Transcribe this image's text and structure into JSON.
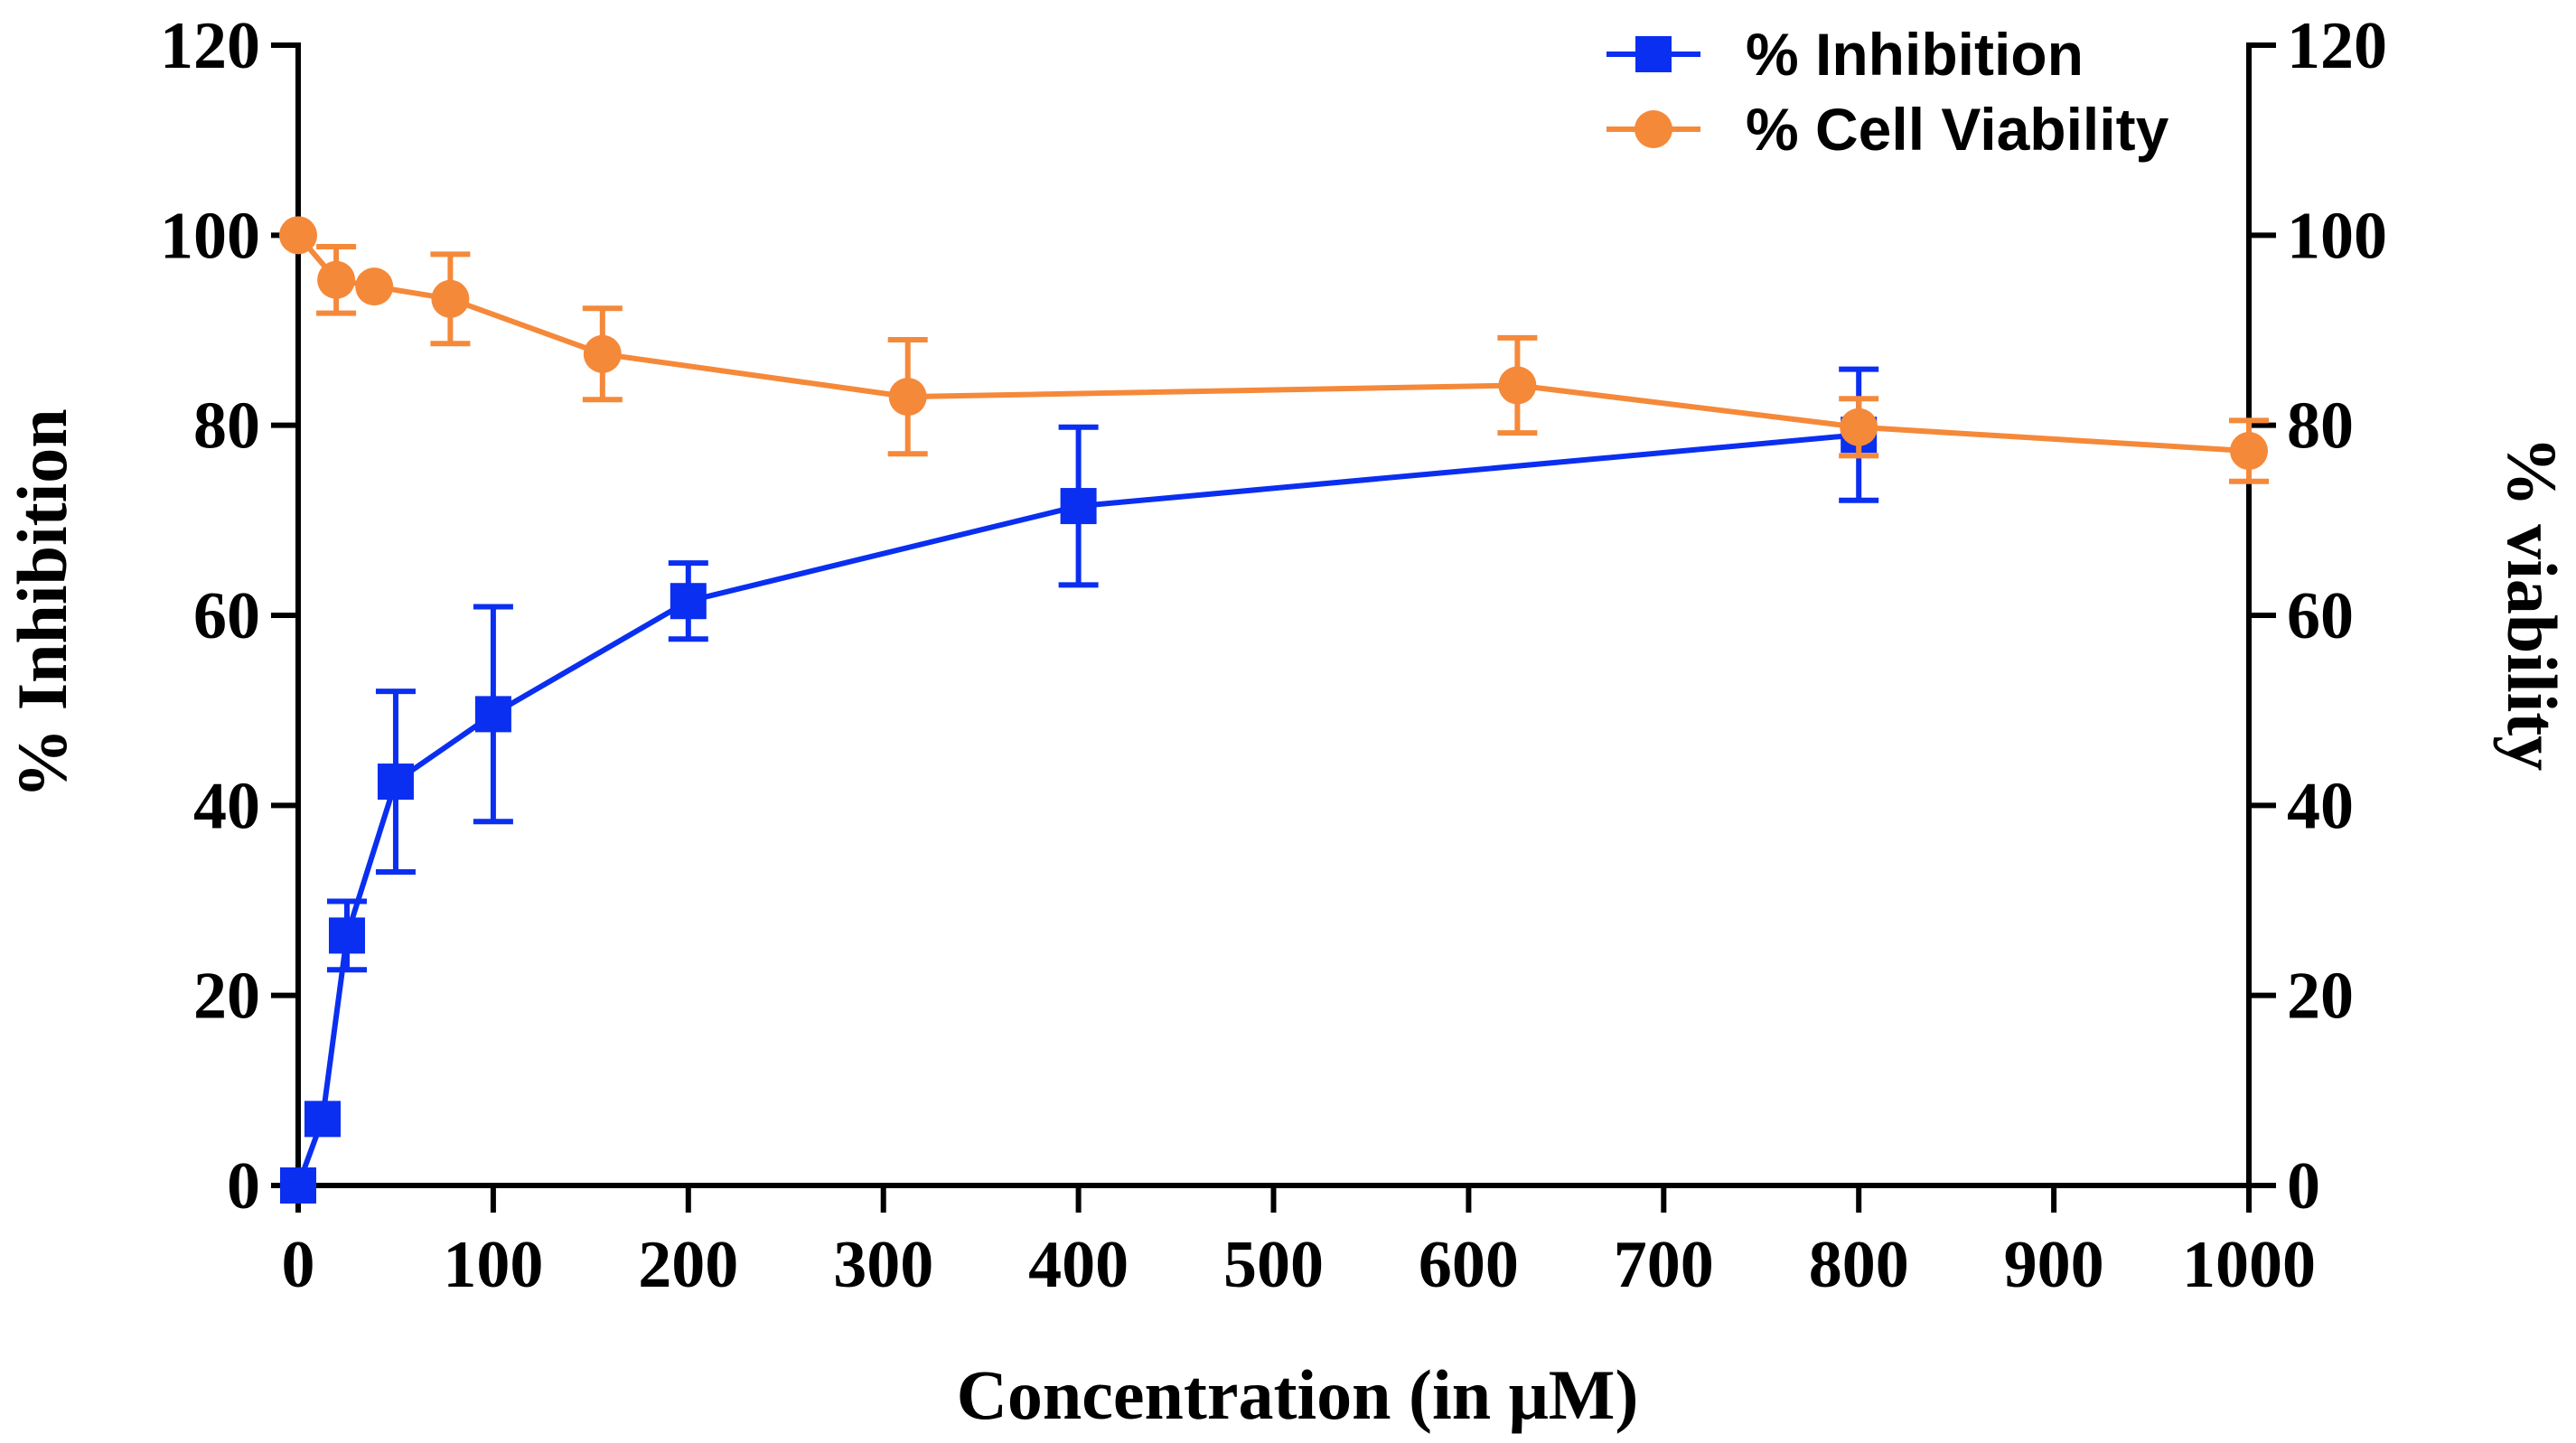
{
  "chart_data": {
    "type": "line",
    "x_label": "Concentration (in μM)",
    "y_left_label": "% Inhibition",
    "y_right_label": "% viability",
    "x_range": [
      0,
      1000
    ],
    "x_ticks": [
      0,
      100,
      200,
      300,
      400,
      500,
      600,
      700,
      800,
      900,
      1000
    ],
    "y_left_range": [
      0,
      120
    ],
    "y_right_range": [
      0,
      120
    ],
    "y_ticks": [
      0,
      20,
      40,
      60,
      80,
      100,
      120
    ],
    "legend_position": "top-right",
    "series": [
      {
        "name": "% Inhibition",
        "axis": "left",
        "marker": "square",
        "color": "#0a2ff0",
        "points": [
          {
            "x": 0,
            "y": 0,
            "err": 0
          },
          {
            "x": 12.5,
            "y": 7,
            "err": 0
          },
          {
            "x": 25,
            "y": 26.3,
            "err": 3.6
          },
          {
            "x": 50,
            "y": 42.5,
            "err": 9.5
          },
          {
            "x": 100,
            "y": 49.6,
            "err": 11.3
          },
          {
            "x": 200,
            "y": 61.5,
            "err": 4
          },
          {
            "x": 400,
            "y": 71.5,
            "err": 8.3
          },
          {
            "x": 800,
            "y": 79,
            "err": 6.9
          }
        ]
      },
      {
        "name": "% Cell Viability",
        "axis": "right",
        "marker": "circle",
        "color": "#f5893a",
        "points": [
          {
            "x": 0,
            "y": 100,
            "err": 0
          },
          {
            "x": 19.5,
            "y": 95.3,
            "err": 3.5
          },
          {
            "x": 39,
            "y": 94.6,
            "err": 0
          },
          {
            "x": 78,
            "y": 93.3,
            "err": 4.7
          },
          {
            "x": 156,
            "y": 87.5,
            "err": 4.8
          },
          {
            "x": 312.5,
            "y": 83,
            "err": 6
          },
          {
            "x": 625,
            "y": 84.2,
            "err": 5
          },
          {
            "x": 800,
            "y": 79.8,
            "err": 3
          },
          {
            "x": 1000,
            "y": 77.3,
            "err": 3.2
          }
        ]
      }
    ]
  }
}
